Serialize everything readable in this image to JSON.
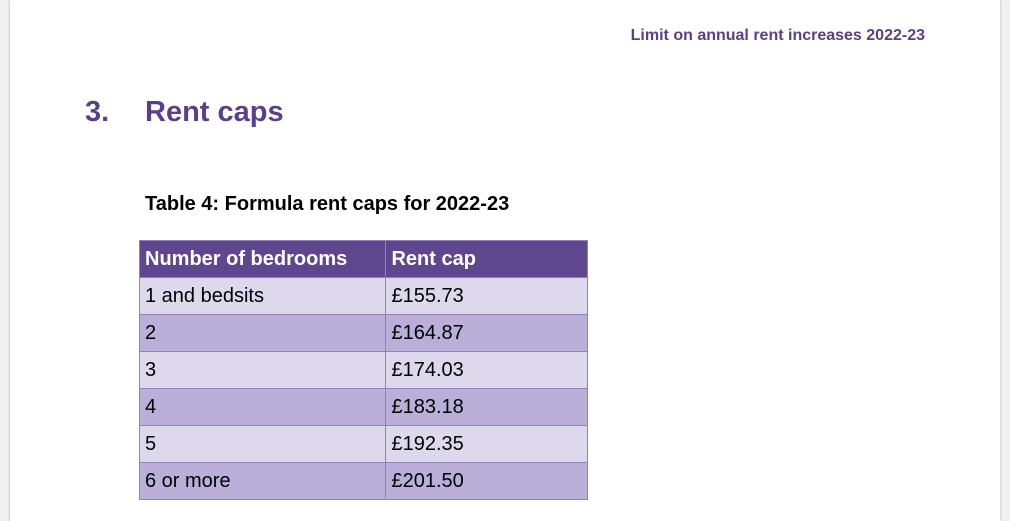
{
  "header": {
    "running_title": "Limit on annual rent increases 2022-23"
  },
  "section": {
    "number": "3.",
    "title": "Rent caps"
  },
  "table": {
    "caption": "Table 4: Formula rent caps for 2022-23",
    "columns": [
      "Number of bedrooms",
      "Rent cap"
    ],
    "rows": [
      {
        "bedrooms": "1 and bedsits",
        "rent_cap": "£155.73"
      },
      {
        "bedrooms": "2",
        "rent_cap": "£164.87"
      },
      {
        "bedrooms": "3",
        "rent_cap": "£174.03"
      },
      {
        "bedrooms": "4",
        "rent_cap": "£183.18"
      },
      {
        "bedrooms": "5",
        "rent_cap": "£192.35"
      },
      {
        "bedrooms": "6 or more",
        "rent_cap": "£201.50"
      }
    ]
  },
  "colors": {
    "accent": "#5a3f8c",
    "header_fill": "#5e478f",
    "row_light": "#ddd8eb",
    "row_dark": "#b9afd8"
  }
}
